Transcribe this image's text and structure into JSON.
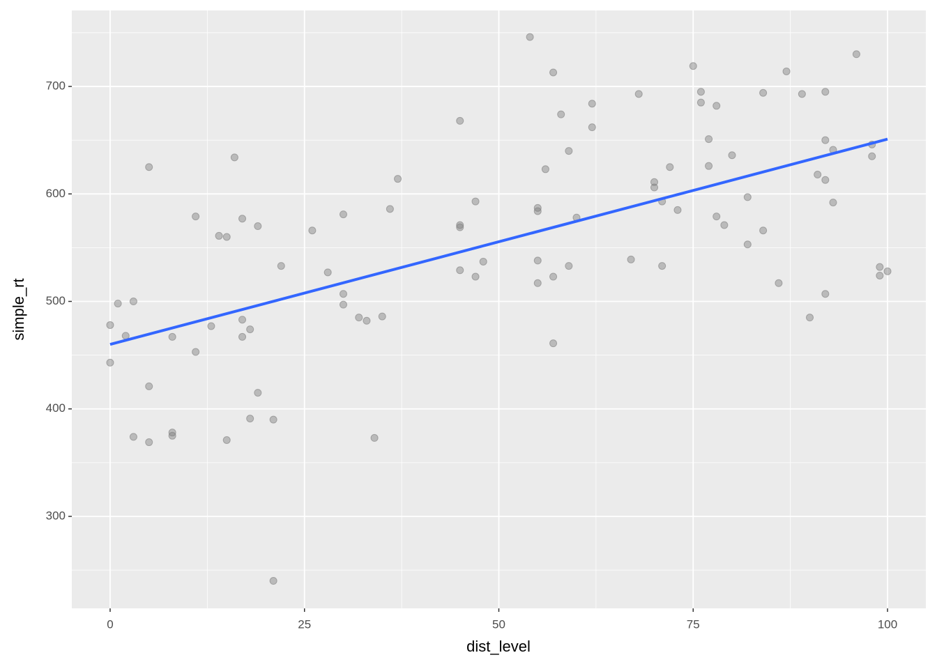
{
  "chart_data": {
    "type": "scatter",
    "x_label": "dist_level",
    "y_label": "simple_rt",
    "x": [
      0,
      0,
      1,
      2,
      3,
      3,
      5,
      5,
      5,
      8,
      8,
      8,
      11,
      11,
      13,
      14,
      15,
      15,
      16,
      17,
      17,
      17,
      18,
      18,
      19,
      19,
      21,
      21,
      22,
      26,
      28,
      30,
      30,
      30,
      32,
      33,
      34,
      35,
      36,
      37,
      45,
      45,
      45,
      45,
      47,
      47,
      48,
      54,
      55,
      55,
      55,
      55,
      57,
      57,
      57,
      58,
      56,
      59,
      59,
      60,
      62,
      62,
      67,
      68,
      70,
      70,
      71,
      71,
      72,
      73,
      75,
      76,
      76,
      77,
      77,
      78,
      78,
      79,
      80,
      82,
      82,
      84,
      84,
      86,
      87,
      89,
      90,
      91,
      92,
      92,
      92,
      92,
      93,
      93,
      96,
      98,
      98,
      99,
      99,
      100
    ],
    "values": [
      478,
      443,
      498,
      468,
      500,
      374,
      421,
      625,
      369,
      467,
      378,
      375,
      579,
      453,
      477,
      561,
      560,
      371,
      634,
      577,
      483,
      467,
      474,
      391,
      570,
      415,
      390,
      240,
      533,
      566,
      527,
      581,
      507,
      497,
      485,
      482,
      373,
      486,
      586,
      614,
      668,
      571,
      569,
      529,
      593,
      523,
      537,
      746,
      587,
      584,
      538,
      517,
      713,
      523,
      461,
      674,
      623,
      640,
      533,
      578,
      684,
      662,
      539,
      693,
      611,
      606,
      593,
      533,
      625,
      585,
      719,
      695,
      685,
      651,
      626,
      682,
      579,
      571,
      636,
      597,
      553,
      694,
      566,
      517,
      714,
      693,
      485,
      618,
      695,
      650,
      613,
      507,
      641,
      592,
      730,
      646,
      635,
      532,
      524,
      528
    ],
    "color": "#7f7f7f",
    "fit": {
      "x": [
        0,
        100
      ],
      "values": [
        460,
        651
      ],
      "color": "#3366ff"
    },
    "xlim": [
      -4.93,
      104.93
    ],
    "ylim": [
      214.4,
      770.7
    ],
    "xticks": [
      0,
      25,
      50,
      75,
      100
    ],
    "yticks": [
      300,
      400,
      500,
      600,
      700
    ],
    "grid": true,
    "background": "#ebebeb"
  }
}
